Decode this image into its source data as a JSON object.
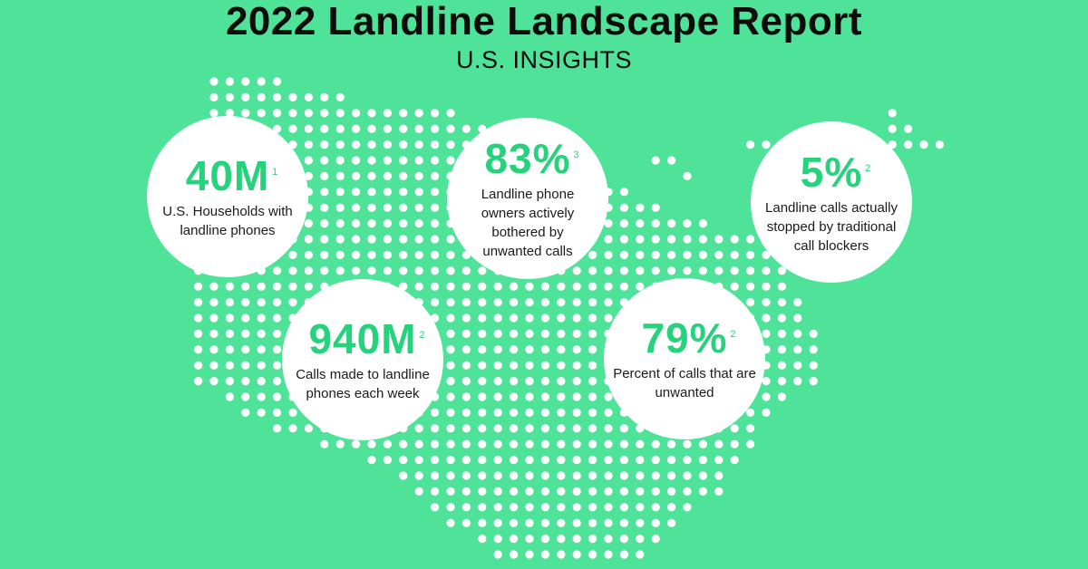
{
  "header": {
    "title": "2022 Landline Landscape Report",
    "subtitle": "U.S. INSIGHTS"
  },
  "colors": {
    "background": "#4fe39a",
    "accent": "#27d27c",
    "dots": "#ffffff"
  },
  "stats": [
    {
      "value": "40M",
      "note": "1",
      "label": "U.S. Households with landline phones"
    },
    {
      "value": "83%",
      "note": "3",
      "label": "Landline phone owners actively bothered by unwanted calls"
    },
    {
      "value": "5%",
      "note": "2",
      "label": "Landline calls actually stopped by traditional call blockers"
    },
    {
      "value": "940M",
      "note": "2",
      "label": "Calls made to landline phones each week"
    },
    {
      "value": "79%",
      "note": "2",
      "label": "Percent of calls that are unwanted"
    }
  ]
}
